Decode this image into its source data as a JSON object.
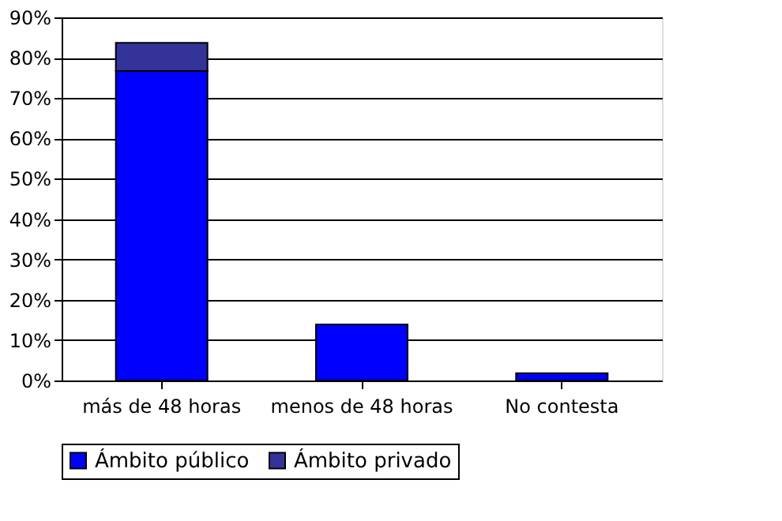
{
  "chart_data": {
    "type": "bar",
    "stacked": true,
    "categories": [
      "más de 48 horas",
      "menos de 48 horas",
      "No contesta"
    ],
    "series": [
      {
        "name": "Ámbito público",
        "color": "#0000ff",
        "values": [
          76.7,
          13.9,
          1.8
        ]
      },
      {
        "name": "Ámbito privado",
        "color": "#333399",
        "values": [
          7,
          null,
          null
        ]
      }
    ],
    "ylim": [
      0,
      90
    ],
    "yticks": [
      {
        "value": 0,
        "label": "0%"
      },
      {
        "value": 10,
        "label": "10%"
      },
      {
        "value": 20,
        "label": "20%"
      },
      {
        "value": 30,
        "label": "30%"
      },
      {
        "value": 40,
        "label": "40%"
      },
      {
        "value": 50,
        "label": "50%"
      },
      {
        "value": 60,
        "label": "60%"
      },
      {
        "value": 70,
        "label": "70%"
      },
      {
        "value": 80,
        "label": "80%"
      },
      {
        "value": 90,
        "label": "90%"
      }
    ],
    "grid": "y",
    "legend": "bottom"
  }
}
